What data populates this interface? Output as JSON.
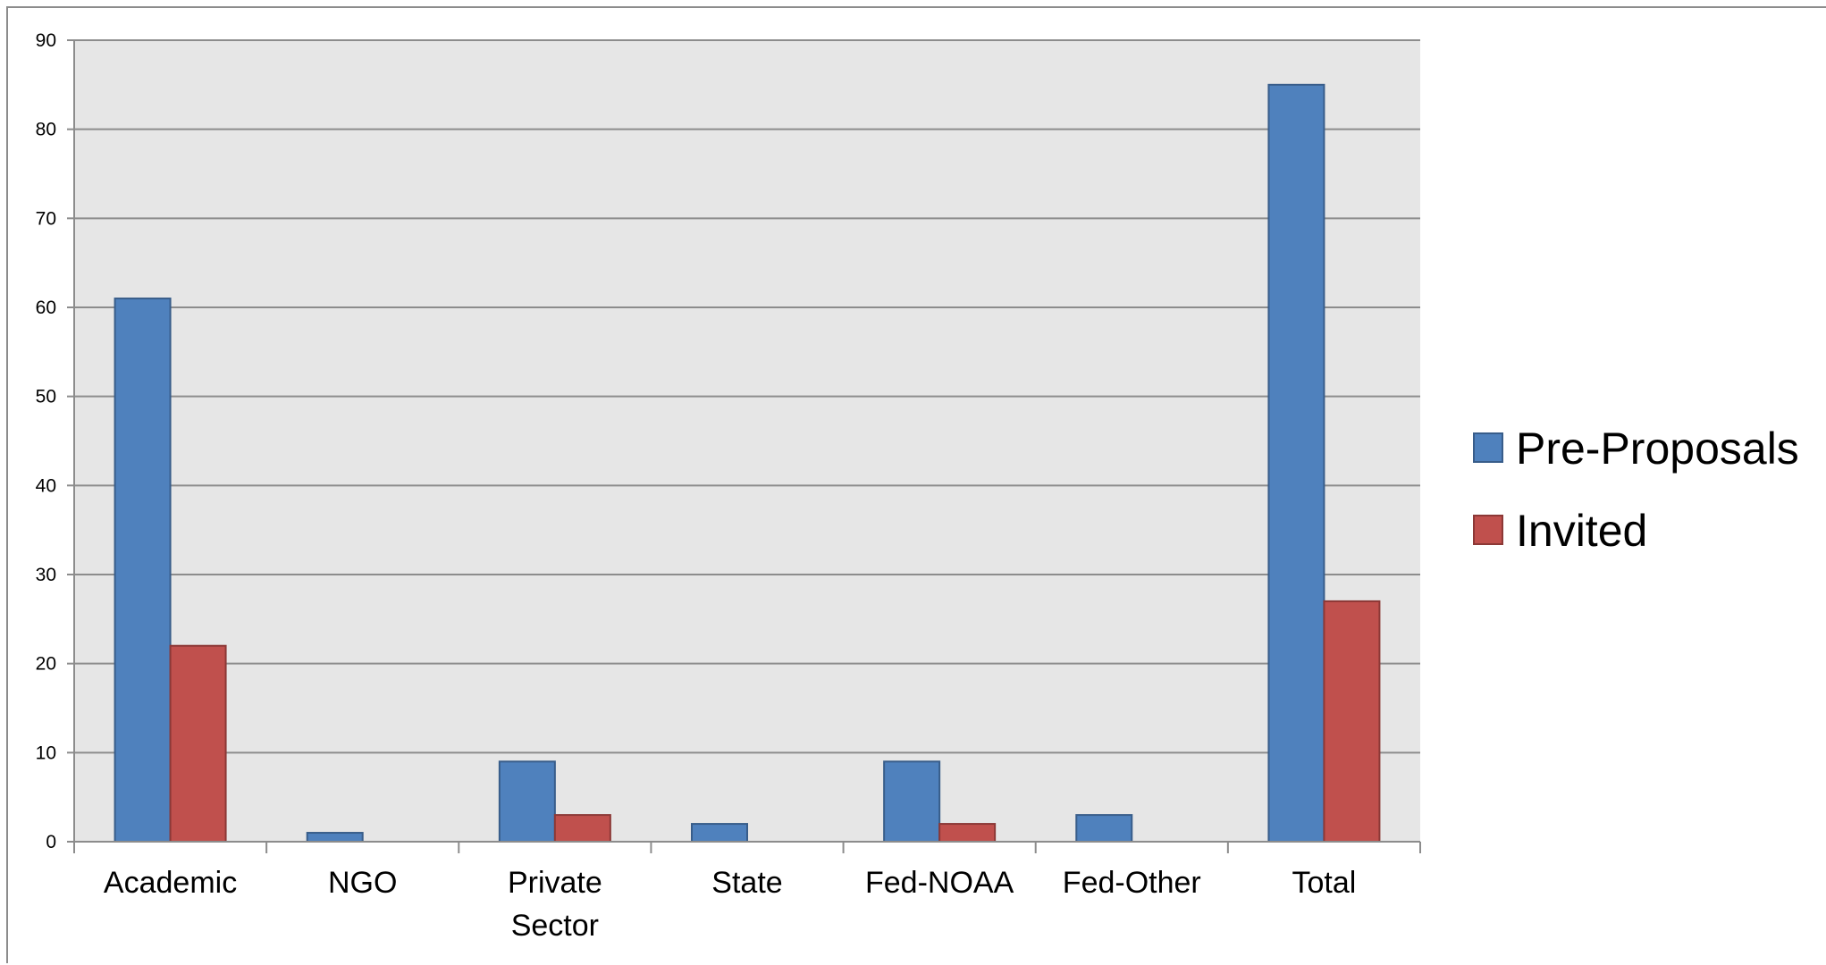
{
  "chart_data": {
    "type": "bar",
    "categories": [
      [
        "Academic"
      ],
      [
        "NGO"
      ],
      [
        "Private",
        "Sector"
      ],
      [
        "State"
      ],
      [
        "Fed-NOAA"
      ],
      [
        "Fed-Other"
      ],
      [
        "Total"
      ]
    ],
    "series": [
      {
        "name": "Pre-Proposals",
        "color": "#4f81bd",
        "border": "#385d8a",
        "values": [
          61,
          1,
          9,
          2,
          9,
          3,
          85
        ]
      },
      {
        "name": "Invited",
        "color": "#c0504d",
        "border": "#8c3836",
        "values": [
          22,
          0,
          3,
          0,
          2,
          0,
          27
        ]
      }
    ],
    "ylim": [
      0,
      90
    ],
    "yticks": [
      "0",
      "10",
      "20",
      "30",
      "40",
      "50",
      "60",
      "70",
      "80",
      "90"
    ],
    "grid": true,
    "plot_background": "#e6e6e6",
    "grid_color": "#8c8c8c",
    "legend_position": "right",
    "title": "",
    "xlabel": "",
    "ylabel": ""
  }
}
